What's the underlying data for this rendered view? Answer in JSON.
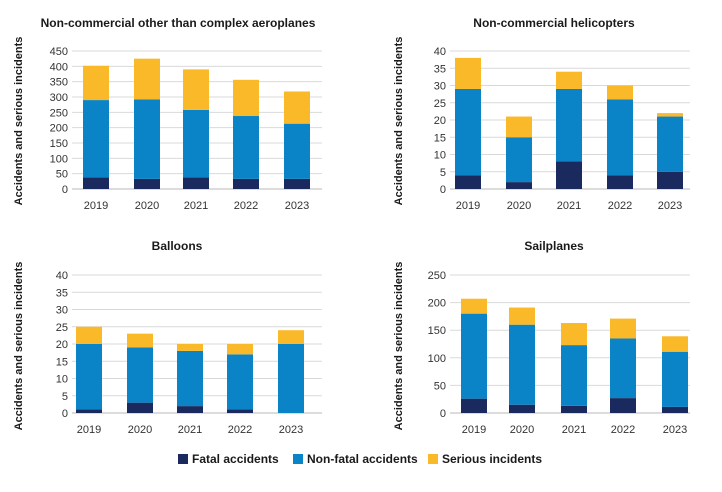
{
  "colors": {
    "fatal": "#1b2a5e",
    "nonfatal": "#0a84c6",
    "serious": "#f9b929"
  },
  "legend": [
    {
      "key": "fatal",
      "label": "Fatal accidents"
    },
    {
      "key": "nonfatal",
      "label": "Non-fatal accidents"
    },
    {
      "key": "serious",
      "label": "Serious incidents"
    }
  ],
  "chart_data": [
    {
      "type": "bar",
      "stacked": true,
      "title": "Non-commercial other than complex aeroplanes",
      "ylabel": "Accidents and serious incidents",
      "categories": [
        "2019",
        "2020",
        "2021",
        "2022",
        "2023"
      ],
      "ylim": [
        0,
        450
      ],
      "yticks": [
        0,
        50,
        100,
        150,
        200,
        250,
        300,
        350,
        400,
        450
      ],
      "series": [
        {
          "name": "Fatal accidents",
          "key": "fatal",
          "values": [
            38,
            33,
            38,
            33,
            33
          ]
        },
        {
          "name": "Non-fatal accidents",
          "key": "nonfatal",
          "values": [
            252,
            259,
            220,
            205,
            180
          ]
        },
        {
          "name": "Serious incidents",
          "key": "serious",
          "values": [
            112,
            133,
            132,
            118,
            105
          ]
        }
      ]
    },
    {
      "type": "bar",
      "stacked": true,
      "title": "Non-commercial helicopters",
      "ylabel": "Accidents and serious incidents",
      "categories": [
        "2019",
        "2020",
        "2021",
        "2022",
        "2023"
      ],
      "ylim": [
        0,
        40
      ],
      "yticks": [
        0,
        5,
        10,
        15,
        20,
        25,
        30,
        35,
        40
      ],
      "series": [
        {
          "name": "Fatal accidents",
          "key": "fatal",
          "values": [
            4,
            2,
            8,
            4,
            5
          ]
        },
        {
          "name": "Non-fatal accidents",
          "key": "nonfatal",
          "values": [
            25,
            13,
            21,
            22,
            16
          ]
        },
        {
          "name": "Serious incidents",
          "key": "serious",
          "values": [
            9,
            6,
            5,
            4,
            1
          ]
        }
      ]
    },
    {
      "type": "bar",
      "stacked": true,
      "title": "Balloons",
      "ylabel": "Accidents and serious incidents",
      "categories": [
        "2019",
        "2020",
        "2021",
        "2022",
        "2023"
      ],
      "ylim": [
        0,
        40
      ],
      "yticks": [
        0,
        5,
        10,
        15,
        20,
        25,
        30,
        35,
        40
      ],
      "series": [
        {
          "name": "Fatal accidents",
          "key": "fatal",
          "values": [
            1,
            3,
            2,
            1,
            0
          ]
        },
        {
          "name": "Non-fatal accidents",
          "key": "nonfatal",
          "values": [
            19,
            16,
            16,
            16,
            20
          ]
        },
        {
          "name": "Serious incidents",
          "key": "serious",
          "values": [
            5,
            4,
            2,
            3,
            4
          ]
        }
      ]
    },
    {
      "type": "bar",
      "stacked": true,
      "title": "Sailplanes",
      "ylabel": "Accidents and serious incidents",
      "categories": [
        "2019",
        "2020",
        "2021",
        "2022",
        "2023"
      ],
      "ylim": [
        0,
        250
      ],
      "yticks": [
        0,
        50,
        100,
        150,
        200,
        250
      ],
      "series": [
        {
          "name": "Fatal accidents",
          "key": "fatal",
          "values": [
            26,
            15,
            13,
            27,
            11
          ]
        },
        {
          "name": "Non-fatal accidents",
          "key": "nonfatal",
          "values": [
            154,
            145,
            110,
            108,
            100
          ]
        },
        {
          "name": "Serious incidents",
          "key": "serious",
          "values": [
            27,
            31,
            40,
            36,
            28
          ]
        }
      ]
    }
  ]
}
